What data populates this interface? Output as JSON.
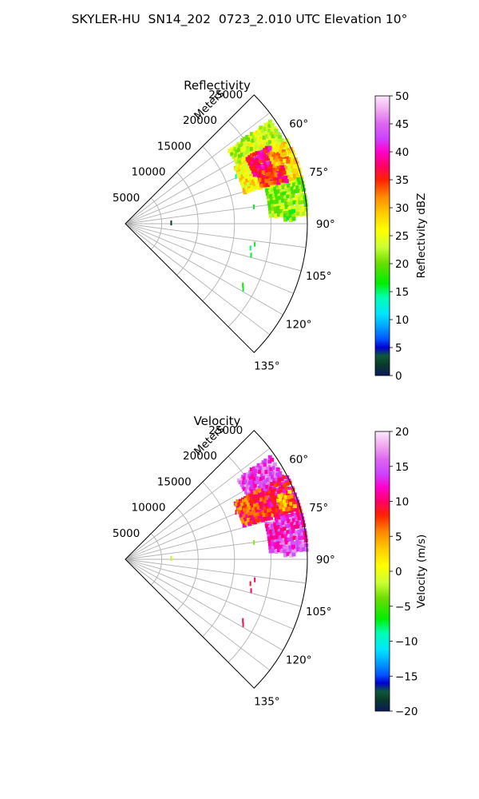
{
  "suptitle": "SKYLER-HU  SN14_202  0723_2.010 UTC Elevation 10°",
  "colormap_stops": [
    {
      "t": 0.0,
      "c": "#0b1a5c"
    },
    {
      "t": 0.04,
      "c": "#0a3a2a"
    },
    {
      "t": 0.07,
      "c": "#0d5a3a"
    },
    {
      "t": 0.1,
      "c": "#0000d0"
    },
    {
      "t": 0.13,
      "c": "#0055ff"
    },
    {
      "t": 0.18,
      "c": "#00aaff"
    },
    {
      "t": 0.22,
      "c": "#00e5ff"
    },
    {
      "t": 0.28,
      "c": "#00ffb0"
    },
    {
      "t": 0.33,
      "c": "#00ee00"
    },
    {
      "t": 0.4,
      "c": "#66dd00"
    },
    {
      "t": 0.46,
      "c": "#ccff33"
    },
    {
      "t": 0.52,
      "c": "#ffff00"
    },
    {
      "t": 0.58,
      "c": "#ffcc00"
    },
    {
      "t": 0.64,
      "c": "#ff8800"
    },
    {
      "t": 0.7,
      "c": "#ff2200"
    },
    {
      "t": 0.75,
      "c": "#ff0066"
    },
    {
      "t": 0.8,
      "c": "#ff00cc"
    },
    {
      "t": 0.85,
      "c": "#cc44ff"
    },
    {
      "t": 0.9,
      "c": "#dd66ee"
    },
    {
      "t": 0.95,
      "c": "#f0aaf0"
    },
    {
      "t": 1.0,
      "c": "#fce8fc"
    }
  ],
  "chart_data": [
    {
      "type": "heatmap",
      "subtype": "polar-sector",
      "title": "Reflectivity",
      "radial_axis_label": "Meters",
      "theta_range_deg": [
        45,
        135
      ],
      "r_range": [
        0,
        25000
      ],
      "grid": true,
      "theta_ticks": [
        60,
        75,
        90,
        105,
        120,
        135
      ],
      "theta_tick_labels": [
        "60°",
        "75°",
        "90°",
        "105°",
        "120°",
        "135°"
      ],
      "r_ticks": [
        5000,
        10000,
        15000,
        20000,
        25000
      ],
      "r_tick_labels": [
        "5000",
        "10000",
        "15000",
        "20000",
        "25000"
      ],
      "colorbar": {
        "label": "Reflectivity dBZ",
        "range": [
          0,
          50
        ],
        "ticks": [
          0,
          5,
          10,
          15,
          20,
          25,
          30,
          35,
          40,
          45,
          50
        ],
        "tick_labels": [
          "0",
          "5",
          "10",
          "15",
          "20",
          "25",
          "30",
          "35",
          "40",
          "45",
          "50"
        ]
      },
      "echo_regions": [
        {
          "theta_deg": [
            55,
            63
          ],
          "r_m": [
            17500,
            24500
          ],
          "value": 24
        },
        {
          "theta_deg": [
            63,
            76
          ],
          "r_m": [
            17000,
            25000
          ],
          "value": 27
        },
        {
          "theta_deg": [
            76,
            87
          ],
          "r_m": [
            20000,
            25000
          ],
          "value": 22
        },
        {
          "theta_deg": [
            62,
            70
          ],
          "r_m": [
            19000,
            22500
          ],
          "value": 38
        },
        {
          "theta_deg": [
            70,
            76
          ],
          "r_m": [
            19500,
            23000
          ],
          "value": 36
        },
        {
          "theta_deg": [
            64,
            69
          ],
          "r_m": [
            22000,
            24000
          ],
          "value": 30
        },
        {
          "theta_deg": [
            86,
            89
          ],
          "r_m": [
            22000,
            23500
          ],
          "value": 19
        }
      ],
      "echo_points": [
        {
          "theta_deg": 67.0,
          "r_m": 16500,
          "value": 14
        },
        {
          "theta_deg": 82.5,
          "r_m": 17800,
          "value": 16
        },
        {
          "theta_deg": 89.0,
          "r_m": 6300,
          "value": 2
        },
        {
          "theta_deg": 99.0,
          "r_m": 18000,
          "value": 16
        },
        {
          "theta_deg": 101.0,
          "r_m": 17500,
          "value": 15
        },
        {
          "theta_deg": 104.0,
          "r_m": 17800,
          "value": 16
        },
        {
          "theta_deg": 117.5,
          "r_m": 18200,
          "value": 17
        },
        {
          "theta_deg": 119.0,
          "r_m": 18500,
          "value": 16
        }
      ]
    },
    {
      "type": "heatmap",
      "subtype": "polar-sector",
      "title": "Velocity",
      "radial_axis_label": "Meters",
      "theta_range_deg": [
        45,
        135
      ],
      "r_range": [
        0,
        25000
      ],
      "grid": true,
      "theta_ticks": [
        60,
        75,
        90,
        105,
        120,
        135
      ],
      "theta_tick_labels": [
        "60°",
        "75°",
        "90°",
        "105°",
        "120°",
        "135°"
      ],
      "r_ticks": [
        5000,
        10000,
        15000,
        20000,
        25000
      ],
      "r_tick_labels": [
        "5000",
        "10000",
        "15000",
        "20000",
        "25000"
      ],
      "colorbar": {
        "label": "Velocity (m/s)",
        "range": [
          -20,
          20
        ],
        "ticks": [
          -20,
          -15,
          -10,
          -5,
          0,
          5,
          10,
          15,
          20
        ],
        "tick_labels": [
          "−20",
          "−15",
          "−10",
          "−5",
          "0",
          "5",
          "10",
          "15",
          "20"
        ]
      },
      "echo_regions": [
        {
          "theta_deg": [
            55,
            63
          ],
          "r_m": [
            19000,
            24500
          ],
          "value": 15
        },
        {
          "theta_deg": [
            63,
            75
          ],
          "r_m": [
            17000,
            21500
          ],
          "value": 8
        },
        {
          "theta_deg": [
            63,
            76
          ],
          "r_m": [
            21500,
            25000
          ],
          "value": 11
        },
        {
          "theta_deg": [
            76,
            87
          ],
          "r_m": [
            20000,
            25000
          ],
          "value": 14
        },
        {
          "theta_deg": [
            86,
            89
          ],
          "r_m": [
            22000,
            23500
          ],
          "value": 15
        },
        {
          "theta_deg": [
            68,
            74
          ],
          "r_m": [
            22500,
            24500
          ],
          "value": 5
        }
      ],
      "echo_points": [
        {
          "theta_deg": 67.0,
          "r_m": 16500,
          "value": 9
        },
        {
          "theta_deg": 82.5,
          "r_m": 17800,
          "value": -3
        },
        {
          "theta_deg": 89.0,
          "r_m": 6300,
          "value": -2
        },
        {
          "theta_deg": 99.0,
          "r_m": 18000,
          "value": 10
        },
        {
          "theta_deg": 101.0,
          "r_m": 17500,
          "value": 9
        },
        {
          "theta_deg": 104.0,
          "r_m": 17800,
          "value": 10
        },
        {
          "theta_deg": 117.5,
          "r_m": 18200,
          "value": 10
        },
        {
          "theta_deg": 119.0,
          "r_m": 18500,
          "value": 9
        }
      ]
    }
  ]
}
